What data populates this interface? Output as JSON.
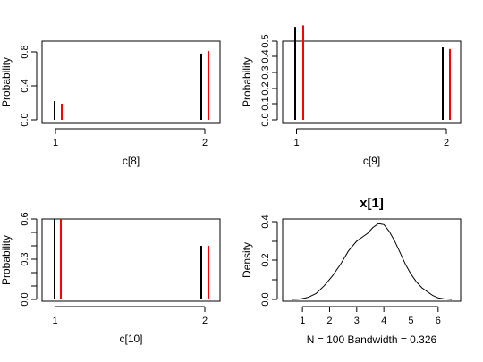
{
  "chart_data": [
    {
      "type": "bar",
      "xlabel": "c[8]",
      "ylabel": "Probability",
      "categories": [
        "1",
        "2"
      ],
      "xlim": [
        0.9,
        2.1
      ],
      "ylim": [
        0,
        0.83
      ],
      "yticks": [
        "0.0",
        "0.4",
        "0.8"
      ],
      "series": [
        {
          "color": "#000000",
          "values": [
            0.22,
            0.78
          ]
        },
        {
          "color": "#ff0000",
          "values": [
            0.19,
            0.81
          ]
        }
      ]
    },
    {
      "type": "bar",
      "xlabel": "c[9]",
      "ylabel": "Probability",
      "categories": [
        "1",
        "2"
      ],
      "xlim": [
        0.9,
        2.1
      ],
      "ylim": [
        0,
        0.6
      ],
      "yticks": [
        "0.0",
        "0.1",
        "0.2",
        "0.3",
        "0.4",
        "0.5"
      ],
      "series": [
        {
          "color": "#000000",
          "values": [
            0.59,
            0.46
          ]
        },
        {
          "color": "#ff0000",
          "values": [
            0.6,
            0.45
          ]
        }
      ]
    },
    {
      "type": "bar",
      "xlabel": "c[10]",
      "ylabel": "Probability",
      "categories": [
        "1",
        "2"
      ],
      "xlim": [
        0.9,
        2.1
      ],
      "ylim": [
        0,
        0.62
      ],
      "yticks": [
        "0.0",
        "0.1",
        "0.2",
        "0.3",
        "0.4",
        "0.5",
        "0.6"
      ],
      "ytick_labels_shown": [
        "0.0",
        "0.3",
        "0.6"
      ],
      "series": [
        {
          "color": "#000000",
          "values": [
            0.6,
            0.4
          ]
        },
        {
          "color": "#ff0000",
          "values": [
            0.6,
            0.4
          ]
        }
      ]
    },
    {
      "type": "line",
      "title": "x[1]",
      "xlabel": "N = 100   Bandwidth = 0.326",
      "ylabel": "Density",
      "xlim": [
        0.5,
        6.6
      ],
      "ylim": [
        0,
        0.43
      ],
      "xticks": [
        "1",
        "2",
        "3",
        "4",
        "5",
        "6"
      ],
      "yticks": [
        "0.0",
        "0.1",
        "0.2",
        "0.3",
        "0.4"
      ],
      "ytick_labels_shown": [
        "0.0",
        "0.2",
        "0.4"
      ],
      "series": [
        {
          "color": "#000000",
          "x": [
            0.6,
            0.9,
            1.2,
            1.5,
            1.8,
            2.1,
            2.4,
            2.7,
            3.0,
            3.2,
            3.4,
            3.6,
            3.8,
            4.0,
            4.2,
            4.4,
            4.6,
            4.8,
            5.0,
            5.2,
            5.4,
            5.6,
            5.8,
            6.0,
            6.2,
            6.5
          ],
          "y": [
            0.0,
            0.002,
            0.01,
            0.03,
            0.07,
            0.12,
            0.18,
            0.25,
            0.3,
            0.32,
            0.34,
            0.37,
            0.39,
            0.385,
            0.35,
            0.3,
            0.24,
            0.18,
            0.13,
            0.09,
            0.06,
            0.04,
            0.02,
            0.008,
            0.003,
            0.0
          ]
        }
      ]
    }
  ]
}
